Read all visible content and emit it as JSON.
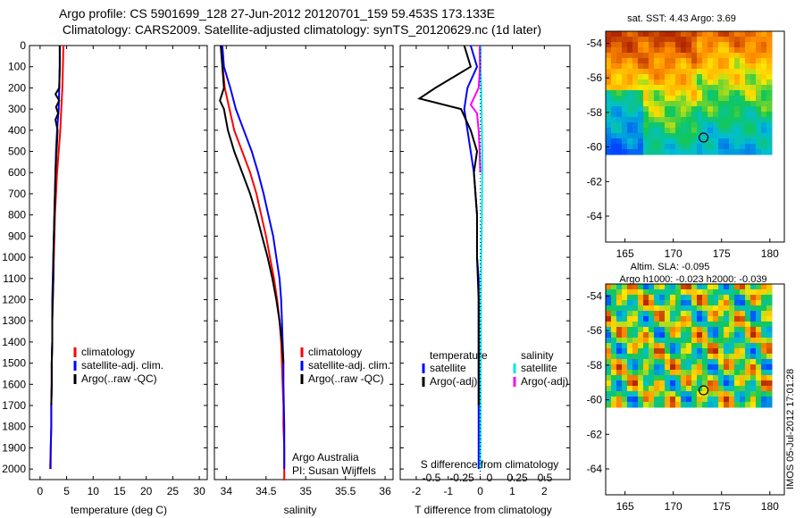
{
  "title_line1": "Argo profile: CS 5901699_128 27-Jun-2012 20120701_159 59.453S 173.133E",
  "title_line2": "Climatology: CARS2009. Satellite-adjusted climatology: synTS_20120629.nc (1d later)",
  "colors": {
    "climatology": "#ff0000",
    "satellite": "#0000ff",
    "argo": "#000000",
    "salinity_satellite": "#00e5ee",
    "salinity_argo": "#ff00ff"
  },
  "panels": {
    "temperature": {
      "xlabel": "temperature (deg C)",
      "xticks": [
        "0",
        "5",
        "10",
        "15",
        "20",
        "25",
        "30"
      ],
      "legend": [
        "climatology",
        "satellite-adj. clim.",
        "Argo(..raw -QC)"
      ]
    },
    "salinity": {
      "xlabel": "salinity",
      "xticks": [
        "34",
        "34.5",
        "35",
        "35.5",
        "36"
      ],
      "legend": [
        "climatology",
        "satellite-adj. clim.",
        "Argo(..raw -QC)"
      ],
      "credit_line1": "Argo Australia",
      "credit_line2": "PI: Susan Wijffels"
    },
    "difference": {
      "xlabel": "T difference from climatology",
      "xticks_t": [
        "-2",
        "-1",
        "0",
        "1",
        "2"
      ],
      "s_label": "S difference from climatology",
      "xticks_s": [
        "-0.5",
        "-0.25",
        "0",
        "0.25",
        "0.5"
      ],
      "legend_t_title": "temperature",
      "legend_t": [
        "satellite",
        "Argo(-adj)"
      ],
      "legend_s_title": "salinity",
      "legend_s": [
        "satellite",
        "Argo(-adj)"
      ]
    }
  },
  "maps": {
    "sst": {
      "title": "sat. SST: 4.43 Argo: 3.69"
    },
    "sla": {
      "title1": "Altim. SLA: -0.095",
      "title2": "Argo h1000: -0.023 h2000: -0.039"
    },
    "yticks": [
      "-54",
      "-56",
      "-58",
      "-60",
      "-62",
      "-64"
    ],
    "xticks": [
      "165",
      "170",
      "175",
      "180"
    ]
  },
  "timestamp": "IMOS 05-Jul-2012 17:01:28",
  "chart_data": [
    {
      "type": "line",
      "title": "",
      "xlabel": "temperature (deg C)",
      "ylabel": "",
      "xlim": [
        -2,
        31.5
      ],
      "ylim": [
        2050,
        0
      ],
      "yticks": [
        0,
        100,
        200,
        300,
        400,
        500,
        600,
        700,
        800,
        900,
        1000,
        1100,
        1200,
        1300,
        1400,
        1500,
        1600,
        1700,
        1800,
        1900,
        2000
      ],
      "series": [
        {
          "name": "climatology",
          "color": "#ff0000",
          "x": [
            4.4,
            4.3,
            4.2,
            4.0,
            3.8,
            3.5,
            3.2,
            3.0,
            2.8,
            2.7,
            2.6,
            2.5,
            2.4,
            2.3,
            2.3,
            2.2,
            2.2,
            2.1,
            2.1,
            2.0,
            2.0
          ],
          "y": [
            0,
            100,
            200,
            300,
            400,
            500,
            600,
            700,
            800,
            900,
            1000,
            1100,
            1200,
            1300,
            1400,
            1500,
            1600,
            1700,
            1800,
            1900,
            2000
          ]
        },
        {
          "name": "satellite-adj. clim.",
          "color": "#0000ff",
          "x": [
            3.7,
            3.7,
            3.6,
            3.5,
            3.2,
            3.0,
            2.9,
            2.8,
            2.7,
            2.6,
            2.5,
            2.4,
            2.3,
            2.3,
            2.2,
            2.2,
            2.1,
            2.1,
            2.0,
            1.9
          ],
          "y": [
            0,
            100,
            200,
            300,
            400,
            500,
            600,
            700,
            800,
            900,
            1000,
            1100,
            1200,
            1400,
            1500,
            1600,
            1700,
            1800,
            1900,
            2000
          ]
        },
        {
          "name": "Argo(..raw -QC)",
          "color": "#000000",
          "x": [
            3.7,
            3.7,
            3.6,
            2.9,
            3.6,
            3.0,
            3.4,
            2.9,
            3.3,
            3.1,
            2.9,
            2.8,
            2.7,
            2.6,
            2.5,
            2.5,
            2.4,
            2.3,
            2.3,
            2.2,
            2.2,
            2.1
          ],
          "y": [
            0,
            100,
            200,
            230,
            260,
            290,
            320,
            350,
            400,
            500,
            600,
            700,
            800,
            900,
            1000,
            1100,
            1200,
            1300,
            1400,
            1500,
            1600,
            1700
          ]
        }
      ]
    },
    {
      "type": "line",
      "title": "",
      "xlabel": "salinity",
      "ylabel": "",
      "xlim": [
        33.85,
        36.1
      ],
      "ylim": [
        2050,
        0
      ],
      "series": [
        {
          "name": "climatology",
          "color": "#ff0000",
          "x": [
            33.93,
            33.98,
            34.1,
            34.2,
            34.3,
            34.38,
            34.44,
            34.5,
            34.55,
            34.6,
            34.64,
            34.67,
            34.69,
            34.7,
            34.71,
            34.72,
            34.72,
            34.73,
            34.73,
            34.73,
            34.74
          ],
          "y": [
            0,
            200,
            400,
            500,
            600,
            700,
            800,
            900,
            1000,
            1100,
            1200,
            1300,
            1400,
            1500,
            1600,
            1700,
            1800,
            1900,
            2000,
            2050,
            2050
          ]
        },
        {
          "name": "satellite-adj. clim.",
          "color": "#0000ff",
          "x": [
            33.95,
            33.97,
            34.05,
            34.12,
            34.22,
            34.32,
            34.4,
            34.47,
            34.53,
            34.59,
            34.63,
            34.67,
            34.69,
            34.7,
            34.71,
            34.72,
            34.72,
            34.73,
            34.73
          ],
          "y": [
            0,
            100,
            200,
            300,
            400,
            500,
            600,
            700,
            800,
            900,
            1000,
            1100,
            1200,
            1300,
            1400,
            1500,
            1600,
            1800,
            2000
          ]
        },
        {
          "name": "Argo(..raw -QC)",
          "color": "#000000",
          "x": [
            33.93,
            33.95,
            33.97,
            33.92,
            33.97,
            34.02,
            34.1,
            34.2,
            34.3,
            34.38,
            34.45,
            34.52,
            34.58,
            34.63,
            34.67,
            34.7,
            34.72
          ],
          "y": [
            0,
            100,
            200,
            260,
            300,
            400,
            500,
            600,
            700,
            800,
            900,
            1000,
            1100,
            1200,
            1300,
            1400,
            1500
          ]
        }
      ]
    },
    {
      "type": "line",
      "title": "",
      "xlabel": "T difference from climatology",
      "ylabel": "",
      "xlim": [
        -2.5,
        2.8
      ],
      "ylim": [
        2050,
        0
      ],
      "series": [
        {
          "name": "temperature satellite",
          "color": "#0000ff",
          "x": [
            -0.3,
            -0.1,
            -0.4,
            -0.5,
            -0.4,
            -0.3,
            -0.2,
            -0.1,
            -0.1,
            -0.05,
            -0.05,
            -0.05,
            -0.05,
            -0.05,
            -0.05,
            -0.05,
            -0.05
          ],
          "y": [
            0,
            100,
            200,
            300,
            400,
            500,
            600,
            800,
            1000,
            1100,
            1200,
            1300,
            1400,
            1500,
            1600,
            1800,
            2000
          ]
        },
        {
          "name": "temperature Argo(-adj)",
          "color": "#000000",
          "x": [
            -0.5,
            -0.3,
            -1.4,
            -1.9,
            -0.6,
            -0.3,
            -0.1,
            -0.2,
            -0.1,
            -0.1,
            -0.05,
            -0.05,
            -0.05
          ],
          "y": [
            0,
            100,
            200,
            250,
            300,
            400,
            500,
            600,
            800,
            1000,
            1200,
            1400,
            1700
          ]
        },
        {
          "name": "salinity satellite",
          "color": "#00e5ee",
          "x": [
            0.02,
            0.01,
            0.03,
            0.04,
            0.05,
            0.06,
            0.06,
            0.05,
            0.04,
            0.03,
            0.02,
            0.02,
            0.01,
            0.01,
            0.0
          ],
          "y": [
            0,
            100,
            200,
            300,
            400,
            500,
            600,
            800,
            900,
            1000,
            1200,
            1400,
            1600,
            1800,
            2000
          ]
        },
        {
          "name": "salinity Argo(-adj)",
          "color": "#ff00ff",
          "x": [
            -0.02,
            -0.01,
            -0.05,
            -0.3,
            -0.1,
            -0.05,
            -0.02,
            0.0
          ],
          "y": [
            0,
            100,
            200,
            280,
            320,
            400,
            500,
            600
          ]
        }
      ]
    }
  ]
}
